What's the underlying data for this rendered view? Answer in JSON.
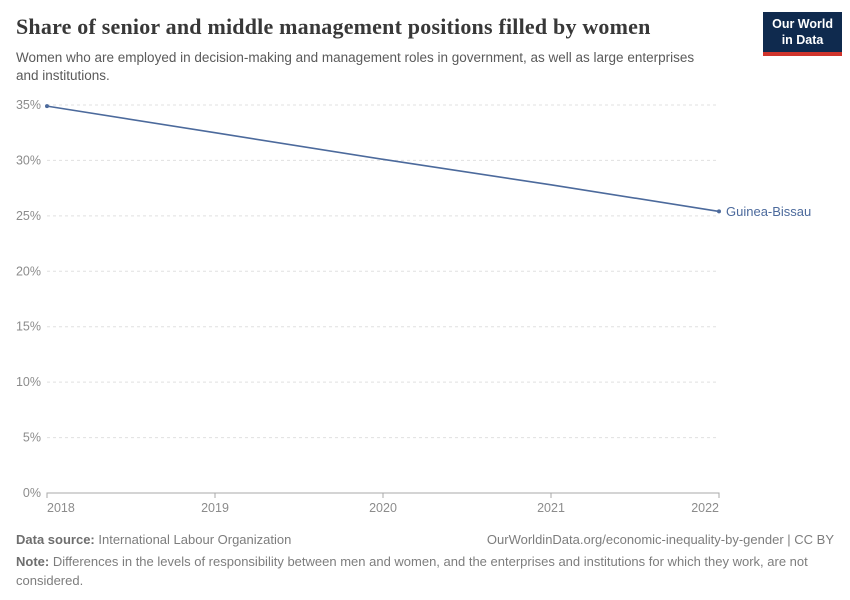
{
  "header": {
    "title": "Share of senior and middle management positions filled by women",
    "subtitle": "Women who are employed in decision-making and management roles in government, as well as large enterprises and institutions.",
    "logo": {
      "line1": "Our World",
      "line2": "in Data"
    }
  },
  "chart_data": {
    "type": "line",
    "title": "Share of senior and middle management positions filled by women",
    "x": [
      2018,
      2019,
      2020,
      2021,
      2022
    ],
    "series": [
      {
        "name": "Guinea-Bissau",
        "values": [
          34.9,
          32.5,
          30.1,
          27.8,
          25.4
        ],
        "color": "#4C6A9C"
      }
    ],
    "xlabel": "",
    "ylabel": "",
    "ylim": [
      0,
      35
    ],
    "yticks": [
      0,
      5,
      10,
      15,
      20,
      25,
      30,
      35
    ],
    "ytick_suffix": "%",
    "grid": "horizontal-dashed",
    "legend_position": "end-of-line-label",
    "entity_label": "Guinea-Bissau",
    "endpoint_markers": true
  },
  "footer": {
    "source_label": "Data source:",
    "source_text": "International Labour Organization",
    "link_text": "OurWorldinData.org/economic-inequality-by-gender | CC BY",
    "note_label": "Note:",
    "note_text": "Differences in the levels of responsibility between men and women, and the enterprises and institutions for which they work, are not considered."
  },
  "colors": {
    "line": "#4C6A9C",
    "gridline": "#e0e0e0",
    "axis": "#a8a8a8",
    "tick_label": "#8c8c8c",
    "title": "#383838",
    "subtitle": "#5a5a5a",
    "footer": "#7d7d7d",
    "logo_bg": "#0f2a4e",
    "logo_stripe": "#d0342c"
  }
}
